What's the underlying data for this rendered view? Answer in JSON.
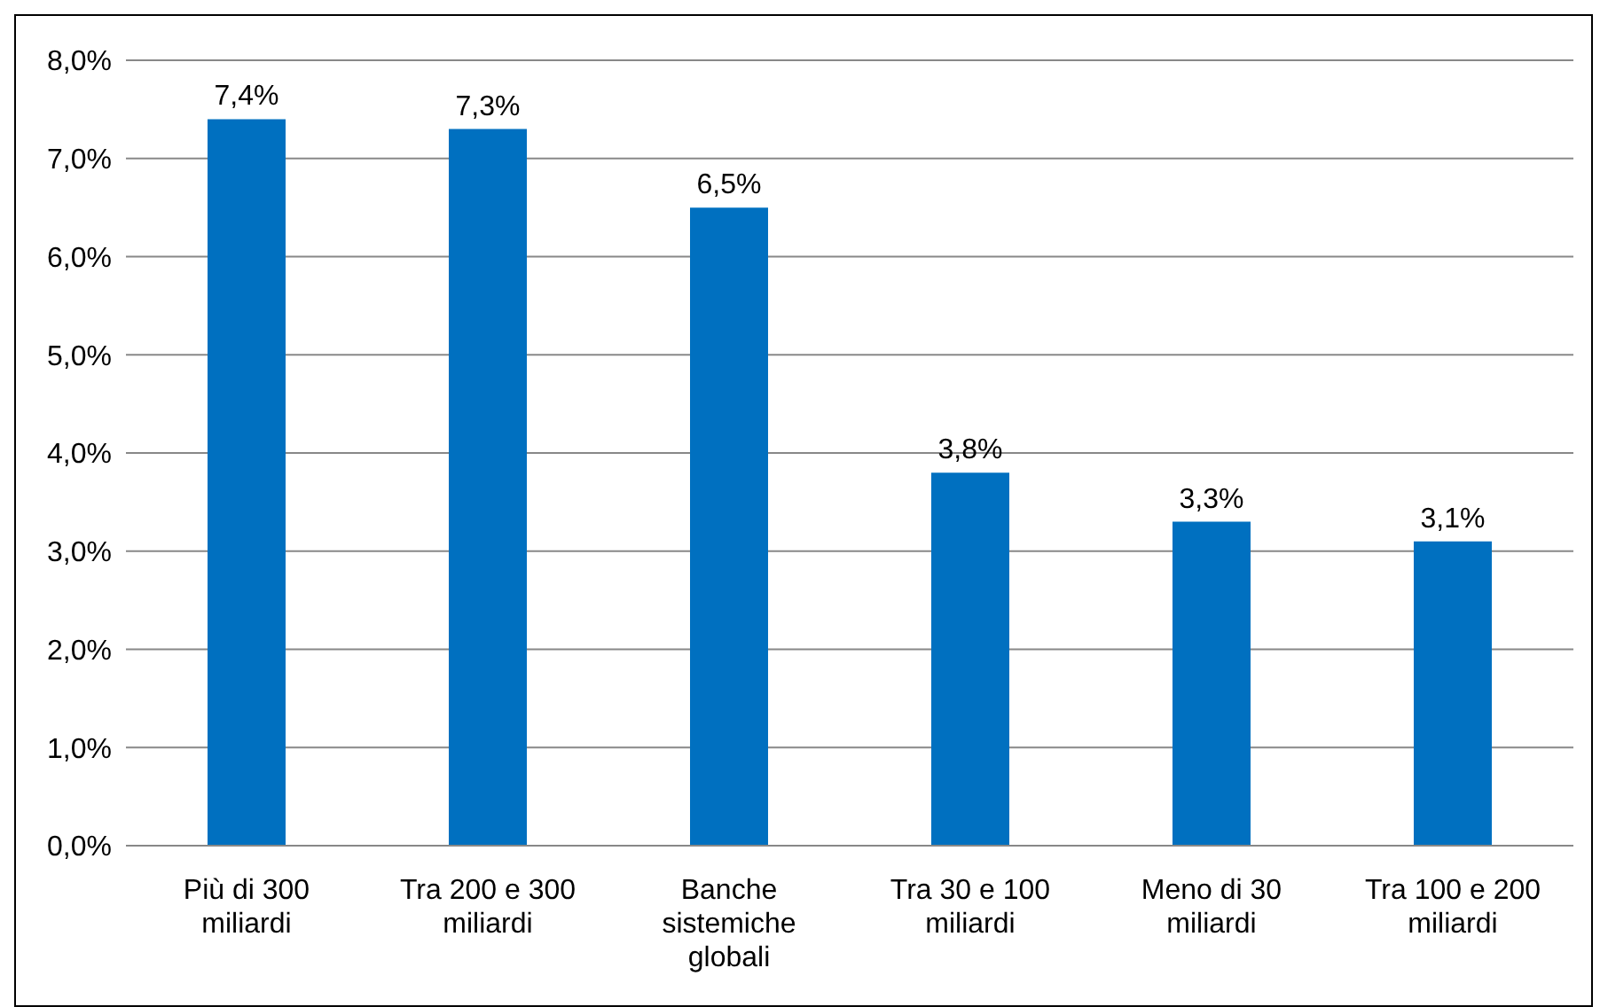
{
  "chart_data": {
    "type": "bar",
    "categories": [
      "Più di 300 miliardi",
      "Tra 200 e 300 miliardi",
      "Banche sistemiche globali",
      "Tra 30 e 100 miliardi",
      "Meno di 30 miliardi",
      "Tra 100 e 200 miliardi"
    ],
    "values": [
      7.4,
      7.3,
      6.5,
      3.8,
      3.3,
      3.1
    ],
    "value_labels": [
      "7,4%",
      "7,3%",
      "6,5%",
      "3,8%",
      "3,3%",
      "3,1%"
    ],
    "color": "#0070c0",
    "ylim": [
      0,
      8
    ],
    "yticks": [
      {
        "value": 0,
        "label": "0,0%"
      },
      {
        "value": 1,
        "label": "1,0%"
      },
      {
        "value": 2,
        "label": "2,0%"
      },
      {
        "value": 3,
        "label": "3,0%"
      },
      {
        "value": 4,
        "label": "4,0%"
      },
      {
        "value": 5,
        "label": "5,0%"
      },
      {
        "value": 6,
        "label": "6,0%"
      },
      {
        "value": 7,
        "label": "7,0%"
      },
      {
        "value": 8,
        "label": "8,0%"
      }
    ],
    "grid": "y",
    "legend": false
  }
}
